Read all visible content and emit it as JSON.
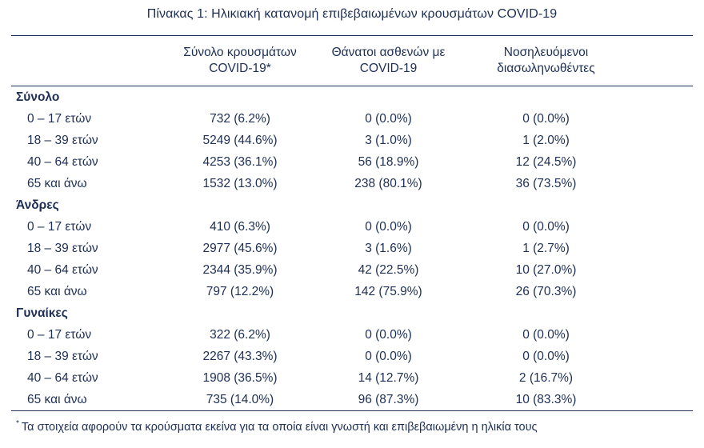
{
  "title": "Πίνακας 1: Ηλικιακή κατανομή επιβεβαιωμένων κρουσμάτων COVID-19",
  "table": {
    "columns": [
      {
        "line1": "Σύνολο κρουσμάτων",
        "line2": "COVID-19*"
      },
      {
        "line1": "Θάνατοι ασθενών με",
        "line2": "COVID-19"
      },
      {
        "line1": "Νοσηλευόμενοι",
        "line2": "διασωληνωθέντες"
      }
    ],
    "sections": [
      {
        "header": "Σύνολο",
        "rows": [
          {
            "label": "0 – 17 ετών",
            "cells": [
              "732 (6.2%)",
              "0 (0.0%)",
              "0 (0.0%)"
            ]
          },
          {
            "label": "18 – 39 ετών",
            "cells": [
              "5249 (44.6%)",
              "3 (1.0%)",
              "1 (2.0%)"
            ]
          },
          {
            "label": "40 – 64 ετών",
            "cells": [
              "4253 (36.1%)",
              "56 (18.9%)",
              "12 (24.5%)"
            ]
          },
          {
            "label": "65 και άνω",
            "cells": [
              "1532 (13.0%)",
              "238 (80.1%)",
              "36 (73.5%)"
            ]
          }
        ]
      },
      {
        "header": "Άνδρες",
        "rows": [
          {
            "label": "0 – 17 ετών",
            "cells": [
              "410 (6.3%)",
              "0 (0.0%)",
              "0 (0.0%)"
            ]
          },
          {
            "label": "18 – 39 ετών",
            "cells": [
              "2977 (45.6%)",
              "3 (1.6%)",
              "1 (2.7%)"
            ]
          },
          {
            "label": "40 – 64 ετών",
            "cells": [
              "2344 (35.9%)",
              "42 (22.5%)",
              "10 (27.0%)"
            ]
          },
          {
            "label": "65 και άνω",
            "cells": [
              "797 (12.2%)",
              "142 (75.9%)",
              "26 (70.3%)"
            ]
          }
        ]
      },
      {
        "header": "Γυναίκες",
        "rows": [
          {
            "label": "0 – 17 ετών",
            "cells": [
              "322 (6.2%)",
              "0 (0.0%)",
              "0 (0.0%)"
            ]
          },
          {
            "label": "18 – 39 ετών",
            "cells": [
              "2267 (43.3%)",
              "0 (0.0%)",
              "0 (0.0%)"
            ]
          },
          {
            "label": "40 – 64 ετών",
            "cells": [
              "1908 (36.5%)",
              "14 (12.7%)",
              "2 (16.7%)"
            ]
          },
          {
            "label": "65 και άνω",
            "cells": [
              "735 (14.0%)",
              "96 (87.3%)",
              "10 (83.3%)"
            ]
          }
        ]
      }
    ]
  },
  "footnote": {
    "marker": "*",
    "text": "Τα στοιχεία αφορούν τα κρούσματα εκείνα για τα οποία είναι γνωστή και επιβεβαιωμένη η ηλικία τους"
  },
  "colors": {
    "text": "#1d2f54",
    "rule": "#1d2f54",
    "background": "#ffffff"
  }
}
